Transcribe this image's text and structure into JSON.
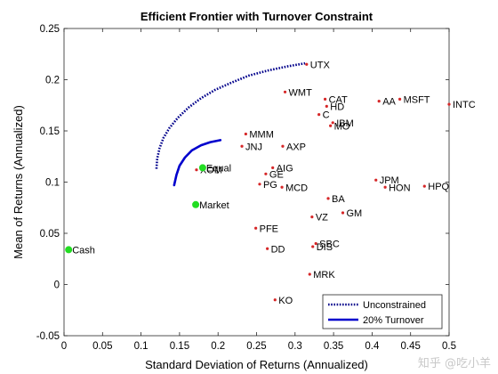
{
  "chart_data": {
    "type": "scatter",
    "title": "Efficient Frontier with Turnover Constraint",
    "xlabel": "Standard Deviation of Returns (Annualized)",
    "ylabel": "Mean of Returns (Annualized)",
    "xlim": [
      0,
      0.5
    ],
    "ylim": [
      -0.05,
      0.25
    ],
    "xticks": [
      "0",
      "0.05",
      "0.1",
      "0.15",
      "0.2",
      "0.25",
      "0.3",
      "0.35",
      "0.4",
      "0.45",
      "0.5"
    ],
    "yticks": [
      "-0.05",
      "0",
      "0.05",
      "0.1",
      "0.15",
      "0.2",
      "0.25"
    ],
    "grid": false,
    "legend_position": "bottom-right",
    "assets": [
      {
        "label": "UTX",
        "x": 0.315,
        "y": 0.215
      },
      {
        "label": "WMT",
        "x": 0.287,
        "y": 0.188
      },
      {
        "label": "CAT",
        "x": 0.339,
        "y": 0.181
      },
      {
        "label": "HD",
        "x": 0.341,
        "y": 0.174
      },
      {
        "label": "C",
        "x": 0.331,
        "y": 0.166
      },
      {
        "label": "IBM",
        "x": 0.349,
        "y": 0.158
      },
      {
        "label": "MO",
        "x": 0.346,
        "y": 0.155
      },
      {
        "label": "AA",
        "x": 0.409,
        "y": 0.179
      },
      {
        "label": "MSFT",
        "x": 0.436,
        "y": 0.181
      },
      {
        "label": "INTC",
        "x": 0.5,
        "y": 0.176
      },
      {
        "label": "MMM",
        "x": 0.236,
        "y": 0.147
      },
      {
        "label": "JNJ",
        "x": 0.231,
        "y": 0.135
      },
      {
        "label": "AXP",
        "x": 0.284,
        "y": 0.135
      },
      {
        "label": "AIG",
        "x": 0.271,
        "y": 0.114
      },
      {
        "label": "GE",
        "x": 0.262,
        "y": 0.108
      },
      {
        "label": "PG",
        "x": 0.254,
        "y": 0.098
      },
      {
        "label": "MCD",
        "x": 0.283,
        "y": 0.095
      },
      {
        "label": "JPM",
        "x": 0.405,
        "y": 0.102
      },
      {
        "label": "HON",
        "x": 0.417,
        "y": 0.095
      },
      {
        "label": "HPQ",
        "x": 0.468,
        "y": 0.096
      },
      {
        "label": "BA",
        "x": 0.343,
        "y": 0.084
      },
      {
        "label": "GM",
        "x": 0.362,
        "y": 0.07
      },
      {
        "label": "VZ",
        "x": 0.322,
        "y": 0.066
      },
      {
        "label": "XOM",
        "x": 0.172,
        "y": 0.112
      },
      {
        "label": "PFE",
        "x": 0.249,
        "y": 0.055
      },
      {
        "label": "DD",
        "x": 0.264,
        "y": 0.035
      },
      {
        "label": "SBC",
        "x": 0.327,
        "y": 0.04
      },
      {
        "label": "DIS",
        "x": 0.323,
        "y": 0.037
      },
      {
        "label": "MRK",
        "x": 0.319,
        "y": 0.01
      },
      {
        "label": "KO",
        "x": 0.274,
        "y": -0.015
      }
    ],
    "highlights": [
      {
        "label": "Equal",
        "x": 0.18,
        "y": 0.114
      },
      {
        "label": "Market",
        "x": 0.171,
        "y": 0.078
      },
      {
        "label": "Cash",
        "x": 0.006,
        "y": 0.034
      }
    ],
    "series": [
      {
        "name": "Unconstrained",
        "style": "dotted",
        "x": [
          0.12,
          0.121,
          0.124,
          0.129,
          0.137,
          0.148,
          0.162,
          0.178,
          0.196,
          0.217,
          0.24,
          0.265,
          0.29,
          0.313
        ],
        "y": [
          0.113,
          0.123,
          0.133,
          0.143,
          0.153,
          0.163,
          0.173,
          0.182,
          0.19,
          0.197,
          0.204,
          0.209,
          0.213,
          0.216
        ]
      },
      {
        "name": "20% Turnover",
        "style": "solid",
        "x": [
          0.143,
          0.146,
          0.15,
          0.157,
          0.166,
          0.178,
          0.19,
          0.203
        ],
        "y": [
          0.097,
          0.107,
          0.116,
          0.124,
          0.131,
          0.136,
          0.139,
          0.141
        ]
      }
    ]
  },
  "colors": {
    "asset_marker": "#d62728",
    "highlight_marker": "#22dd22",
    "unconstrained_line": "#00008b",
    "turnover_line": "#0000cd"
  },
  "watermark": "知乎 @吃小羊"
}
